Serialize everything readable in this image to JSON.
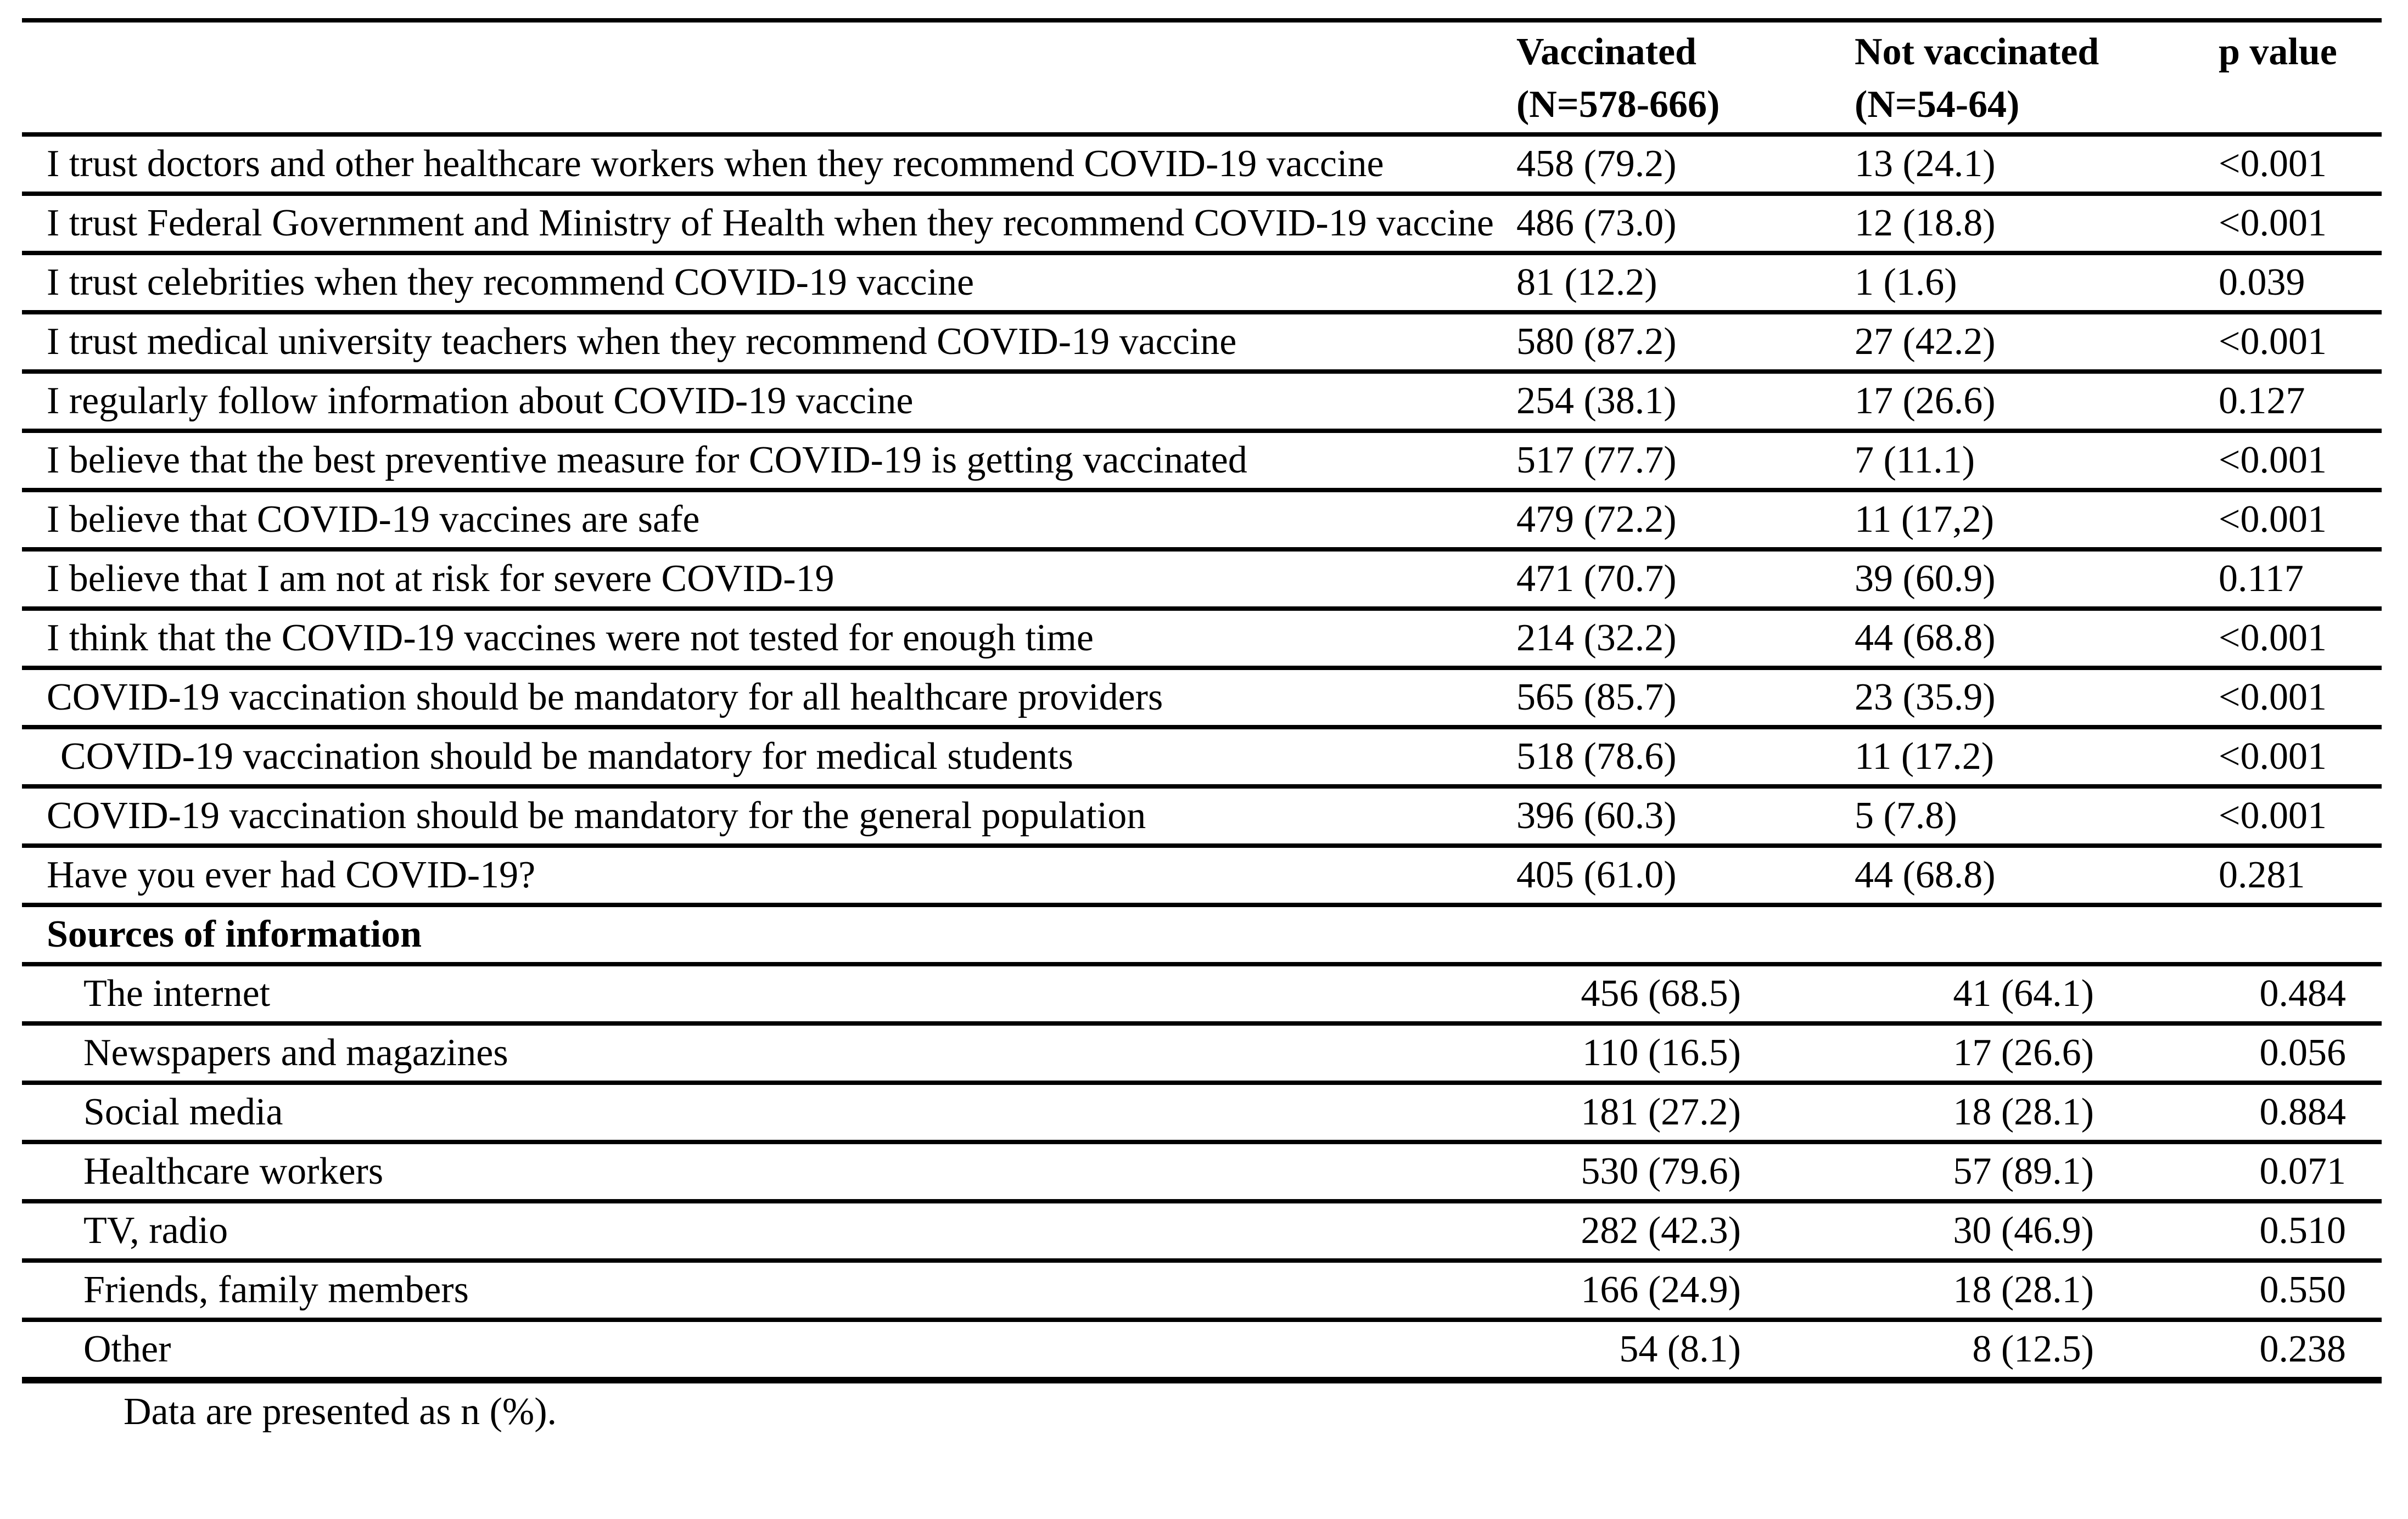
{
  "table": {
    "header": {
      "rowhead": "",
      "col_vaccinated": {
        "label": "Vaccinated",
        "sub": "(N=578-666)"
      },
      "col_not_vaccinated": {
        "label": "Not vaccinated",
        "sub": "(N=54-64)"
      },
      "col_p": "p value"
    },
    "rows": [
      {
        "label": "I trust doctors and other healthcare workers when they recommend COVID-19 vaccine",
        "v": "458 (79.2)",
        "nv": "13 (24.1)",
        "p": "<0.001",
        "wrap": true
      },
      {
        "label": "I trust Federal Government and Ministry of Health when they recommend COVID-19 vaccine",
        "v": "486 (73.0)",
        "nv": "12 (18.8)",
        "p": "<0.001",
        "wrap": true
      },
      {
        "label": "I trust celebrities when they recommend COVID-19 vaccine",
        "v": "81 (12.2)",
        "nv": "1 (1.6)",
        "p": "0.039"
      },
      {
        "label": "I trust medical university teachers when they recommend COVID-19 vaccine",
        "v": "580 (87.2)",
        "nv": "27 (42.2)",
        "p": "<0.001"
      },
      {
        "label": "I regularly follow information about COVID-19 vaccine",
        "v": "254 (38.1)",
        "nv": "17 (26.6)",
        "p": "0.127"
      },
      {
        "label": "I believe that the best preventive measure for COVID-19 is getting vaccinated",
        "v": "517 (77.7)",
        "nv": "7 (11.1)",
        "p": "<0.001"
      },
      {
        "label": "I believe that COVID-19 vaccines are safe",
        "v": "479 (72.2)",
        "nv": "11 (17,2)",
        "p": "<0.001"
      },
      {
        "label": "I believe that I am not at risk for severe COVID-19",
        "v": "471 (70.7)",
        "nv": "39 (60.9)",
        "p": "0.117"
      },
      {
        "label": "I think that the COVID-19 vaccines were not tested for enough time",
        "v": "214 (32.2)",
        "nv": "44 (68.8)",
        "p": "<0.001"
      },
      {
        "label": "COVID-19 vaccination should be mandatory for all healthcare providers",
        "v": "565 (85.7)",
        "nv": "23 (35.9)",
        "p": "<0.001"
      },
      {
        "label": "COVID-19 vaccination should be mandatory for medical students",
        "v": "518 (78.6)",
        "nv": "11 (17.2)",
        "p": "<0.001",
        "indent": true
      },
      {
        "label": "COVID-19 vaccination should be mandatory for the general population",
        "v": "396 (60.3)",
        "nv": "5 (7.8)",
        "p": "<0.001"
      },
      {
        "label": "Have you ever had COVID-19?",
        "v": "405 (61.0)",
        "nv": "44 (68.8)",
        "p": "0.281"
      },
      {
        "label": "Sources of information",
        "section": true
      },
      {
        "label": "The internet",
        "v": "456 (68.5)",
        "nv": "41 (64.1)",
        "p": "0.484",
        "sub": true
      },
      {
        "label": "Newspapers and magazines",
        "v": "110 (16.5)",
        "nv": "17 (26.6)",
        "p": "0.056",
        "sub": true
      },
      {
        "label": "Social media",
        "v": "181 (27.2)",
        "nv": "18 (28.1)",
        "p": "0.884",
        "sub": true
      },
      {
        "label": "Healthcare workers",
        "v": "530 (79.6)",
        "nv": "57 (89.1)",
        "p": "0.071",
        "sub": true
      },
      {
        "label": "TV, radio",
        "v": "282 (42.3)",
        "nv": "30 (46.9)",
        "p": "0.510",
        "sub": true
      },
      {
        "label": "Friends, family members",
        "v": "166 (24.9)",
        "nv": "18 (28.1)",
        "p": "0.550",
        "sub": true
      },
      {
        "label": "Other",
        "v": "54 (8.1)",
        "nv": "8 (12.5)",
        "p": "0.238",
        "sub": true
      }
    ],
    "footnote": "Data are presented as n (%)."
  }
}
